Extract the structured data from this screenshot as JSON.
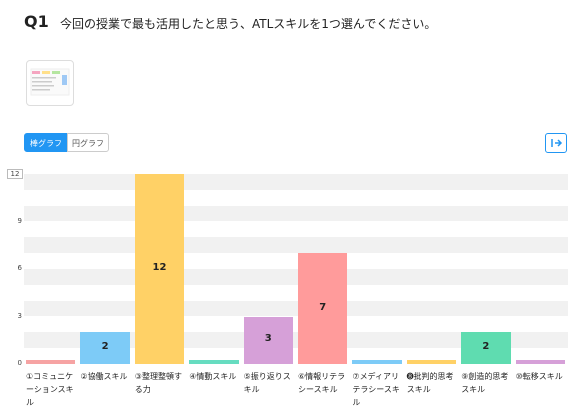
{
  "question": {
    "number": "Q1",
    "text": "今回の授業で最も活用したと思う、ATLスキルを1つ選んでください。"
  },
  "buttons": [
    "棒グラフ",
    "円グラフ"
  ],
  "chart_data": {
    "type": "bar",
    "categories": [
      "①コミュニケーションスキル",
      "②協働スキル",
      "③整理整頓する力",
      "④情動スキル",
      "⑤振り返りスキル",
      "⑥情報リテラシースキル",
      "⑦メディアリテラシースキル",
      "➑批判的思考スキル",
      "⑨創造的思考スキル",
      "⑩転移スキル"
    ],
    "values": [
      0,
      2,
      12,
      0,
      3,
      7,
      0,
      0,
      2,
      0
    ],
    "colors": [
      "#f6a3a3",
      "#7dcbf7",
      "#ffd166",
      "#66dcc0",
      "#d6a0d8",
      "#ff9b9b",
      "#7dcbf7",
      "#ffd166",
      "#5fdcb0",
      "#d6a0d8"
    ],
    "ylim": [
      0,
      12
    ],
    "yticks": [
      0,
      3,
      6,
      9,
      12
    ],
    "grid": true
  }
}
